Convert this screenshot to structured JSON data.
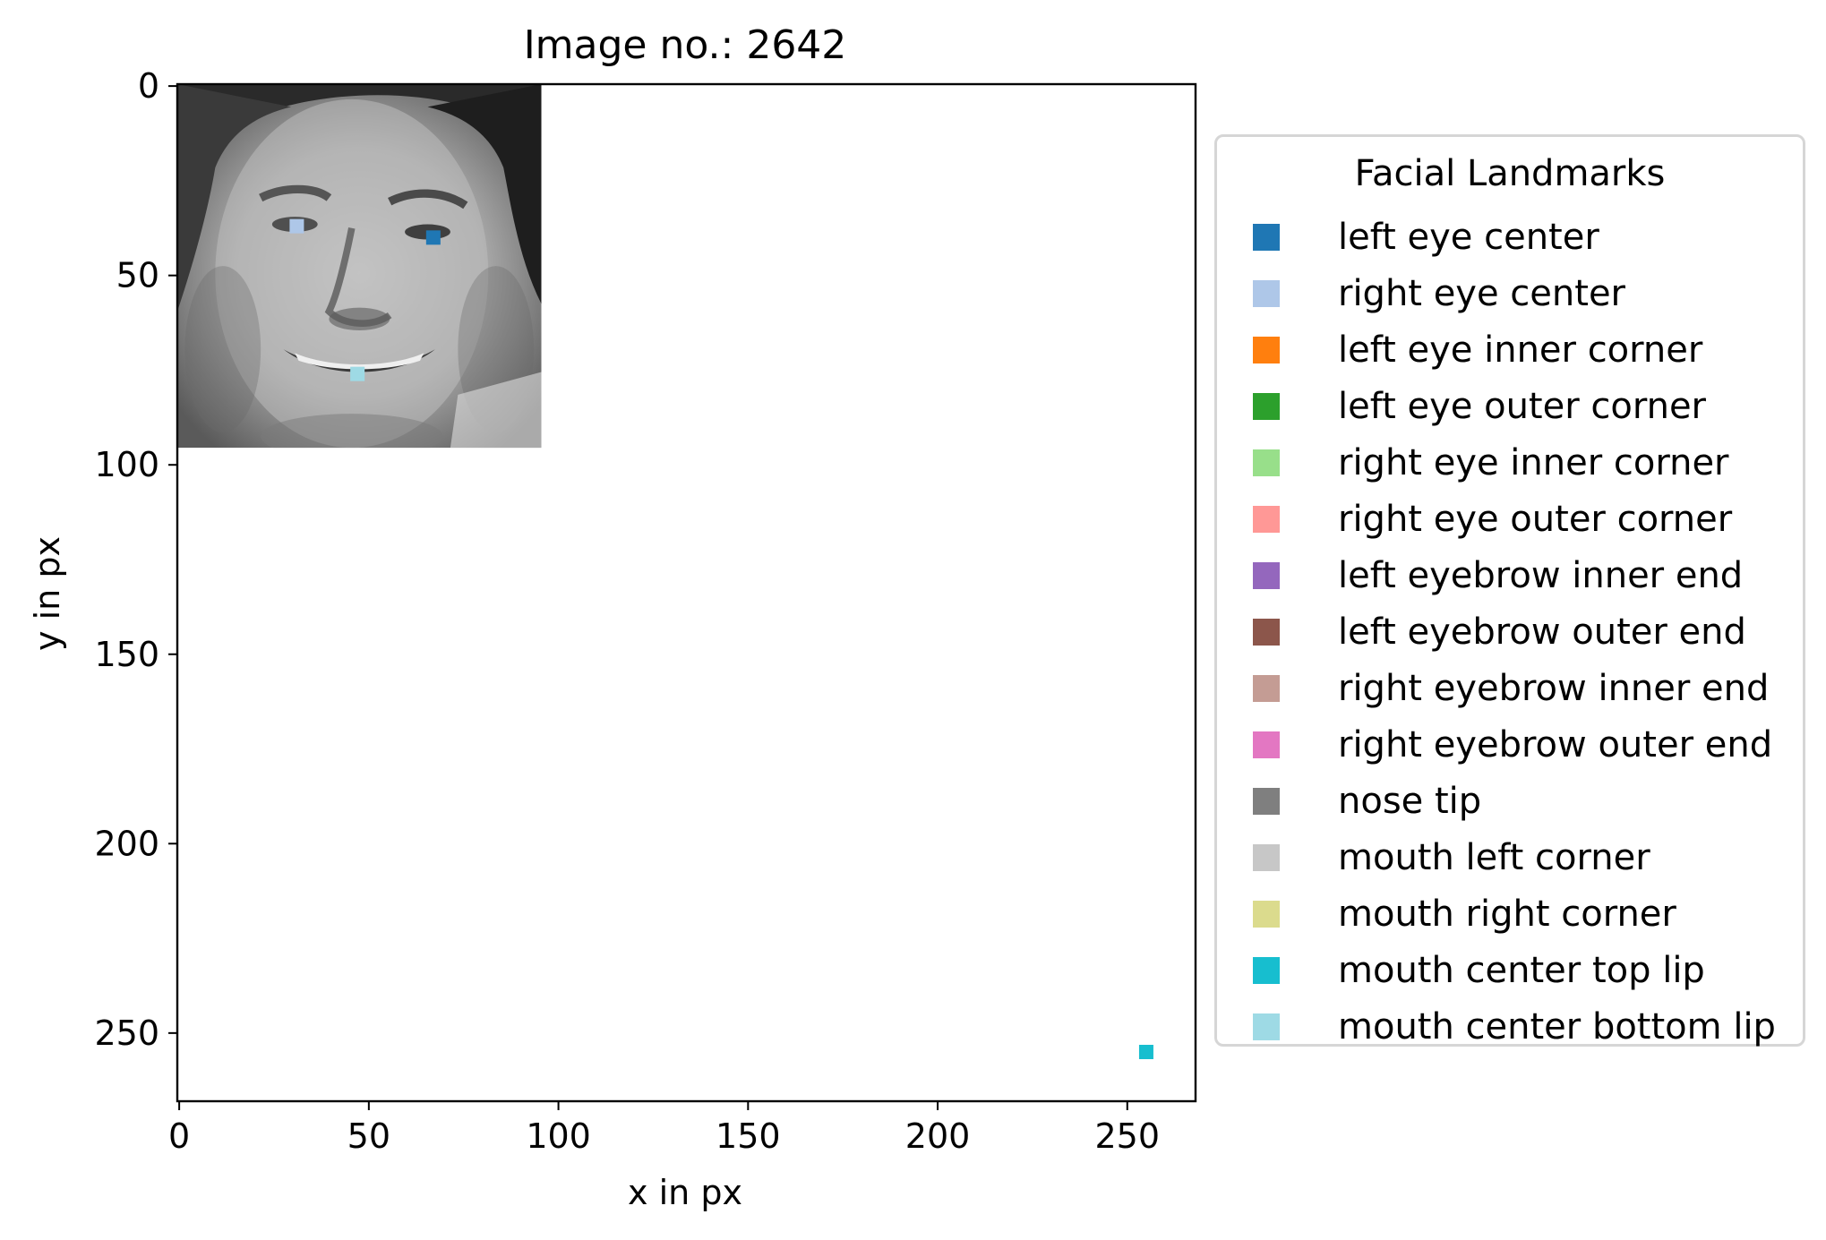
{
  "chart_data": {
    "type": "scatter",
    "title": "Image no.: 2642",
    "xlabel": "x in px",
    "ylabel": "y in px",
    "xlim": [
      -0.5,
      268
    ],
    "ylim": [
      268,
      -0.5
    ],
    "y_inverted": true,
    "x_ticks": [
      0,
      50,
      100,
      150,
      200,
      250
    ],
    "y_ticks": [
      0,
      50,
      100,
      150,
      200,
      250
    ],
    "x_tick_labels": [
      "0",
      "50",
      "100",
      "150",
      "200",
      "250"
    ],
    "y_tick_labels": [
      "0",
      "50",
      "100",
      "150",
      "200",
      "250"
    ],
    "grid": false,
    "background_image": {
      "description": "grayscale face photo",
      "extent": [
        -0.5,
        95.5,
        95.5,
        -0.5
      ]
    },
    "legend": {
      "title": "Facial Landmarks",
      "placement": "outside-right"
    },
    "series": [
      {
        "name": "left eye center",
        "color": "#1f77b4",
        "points": [
          [
            67,
            40
          ]
        ]
      },
      {
        "name": "right eye center",
        "color": "#aec7e8",
        "points": [
          [
            31,
            37
          ]
        ]
      },
      {
        "name": "left eye inner corner",
        "color": "#ff7f0e",
        "points": []
      },
      {
        "name": "left eye outer corner",
        "color": "#2ca02c",
        "points": []
      },
      {
        "name": "right eye inner corner",
        "color": "#98df8a",
        "points": []
      },
      {
        "name": "right eye outer corner",
        "color": "#ff9896",
        "points": []
      },
      {
        "name": "left eyebrow inner end",
        "color": "#9467bd",
        "points": []
      },
      {
        "name": "left eyebrow outer end",
        "color": "#8c564b",
        "points": []
      },
      {
        "name": "right eyebrow inner end",
        "color": "#c49c94",
        "points": []
      },
      {
        "name": "right eyebrow outer end",
        "color": "#e377c2",
        "points": []
      },
      {
        "name": "nose tip",
        "color": "#7f7f7f",
        "points": []
      },
      {
        "name": "mouth left corner",
        "color": "#c7c7c7",
        "points": []
      },
      {
        "name": "mouth right corner",
        "color": "#dbdb8d",
        "points": []
      },
      {
        "name": "mouth center top lip",
        "color": "#17becf",
        "points": [
          [
            255,
            255
          ]
        ]
      },
      {
        "name": "mouth center bottom lip",
        "color": "#9edae5",
        "points": [
          [
            47,
            76
          ]
        ]
      }
    ]
  }
}
